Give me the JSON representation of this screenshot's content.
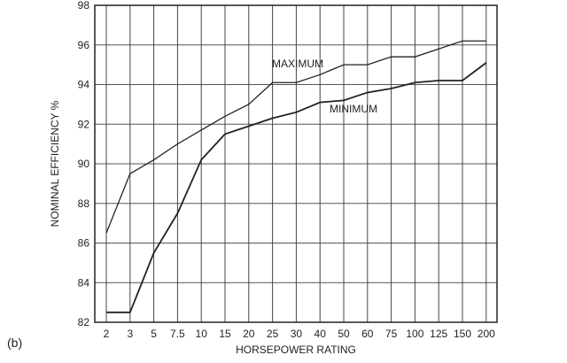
{
  "panel_label": "(b)",
  "chart_data": {
    "type": "line",
    "title": "",
    "xlabel": "HORSEPOWER RATING",
    "ylabel": "NOMINAL EFFICIENCY %",
    "categories": [
      "2",
      "3",
      "5",
      "7.5",
      "10",
      "15",
      "20",
      "25",
      "30",
      "40",
      "50",
      "60",
      "75",
      "100",
      "125",
      "150",
      "200"
    ],
    "ylim": [
      82,
      98
    ],
    "yticks": [
      82,
      84,
      86,
      88,
      90,
      92,
      94,
      96,
      98
    ],
    "grid": true,
    "series": [
      {
        "name": "MAXIMUM",
        "values": [
          86.5,
          89.5,
          90.2,
          91.0,
          91.7,
          92.4,
          93.0,
          94.1,
          94.1,
          94.5,
          95.0,
          95.0,
          95.4,
          95.4,
          95.8,
          96.2,
          96.2
        ]
      },
      {
        "name": "MINIMUM",
        "values": [
          82.5,
          82.5,
          85.5,
          87.5,
          90.2,
          91.5,
          91.9,
          92.3,
          92.6,
          93.1,
          93.2,
          93.6,
          93.8,
          94.1,
          94.2,
          94.2,
          95.1
        ]
      }
    ],
    "annotations": [
      "MAXIMUM",
      "MINIMUM"
    ]
  }
}
